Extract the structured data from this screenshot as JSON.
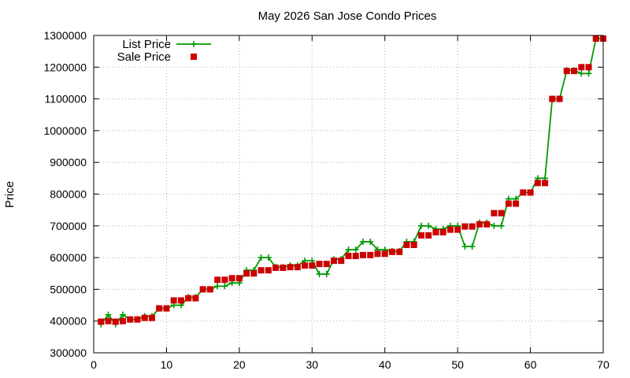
{
  "chart_data": {
    "type": "line",
    "title": "May 2026 San Jose Condo Prices",
    "xlabel": "",
    "ylabel": "Price",
    "xlim": [
      0,
      70
    ],
    "ylim": [
      300000,
      1300000
    ],
    "xticks": [
      0,
      10,
      20,
      30,
      40,
      50,
      60,
      70
    ],
    "yticks": [
      300000,
      400000,
      500000,
      600000,
      700000,
      800000,
      900000,
      1000000,
      1100000,
      1200000,
      1300000
    ],
    "grid": true,
    "legend_position": "top-left",
    "series": [
      {
        "name": "List Price",
        "style": "line-with-plus-markers",
        "color": "#009900",
        "x": [
          1,
          2,
          3,
          4,
          5,
          6,
          7,
          8,
          9,
          10,
          11,
          12,
          13,
          14,
          15,
          16,
          17,
          18,
          19,
          20,
          21,
          22,
          23,
          24,
          25,
          26,
          27,
          28,
          29,
          30,
          31,
          32,
          33,
          34,
          35,
          36,
          37,
          38,
          39,
          40,
          41,
          42,
          43,
          44,
          45,
          46,
          47,
          48,
          49,
          50,
          51,
          52,
          53,
          54,
          55,
          56,
          57,
          58,
          59,
          60,
          61,
          62,
          63,
          64,
          65,
          66,
          67,
          68,
          69,
          70
        ],
        "values": [
          390000,
          420000,
          390000,
          420000,
          405000,
          405000,
          415000,
          415000,
          440000,
          440000,
          450000,
          450000,
          475000,
          475000,
          500000,
          500000,
          510000,
          510000,
          520000,
          520000,
          560000,
          560000,
          600000,
          600000,
          570000,
          570000,
          575000,
          575000,
          590000,
          590000,
          548000,
          548000,
          595000,
          595000,
          625000,
          625000,
          650000,
          650000,
          625000,
          625000,
          620000,
          620000,
          650000,
          650000,
          700000,
          700000,
          690000,
          690000,
          700000,
          700000,
          635000,
          635000,
          710000,
          710000,
          700000,
          700000,
          785000,
          785000,
          805000,
          805000,
          850000,
          850000,
          1100000,
          1100000,
          1190000,
          1190000,
          1180000,
          1180000,
          1290000,
          1290000
        ]
      },
      {
        "name": "Sale Price",
        "style": "square-markers",
        "color": "#cc0000",
        "x": [
          1,
          2,
          3,
          4,
          5,
          6,
          7,
          8,
          9,
          10,
          11,
          12,
          13,
          14,
          15,
          16,
          17,
          18,
          19,
          20,
          21,
          22,
          23,
          24,
          25,
          26,
          27,
          28,
          29,
          30,
          31,
          32,
          33,
          34,
          35,
          36,
          37,
          38,
          39,
          40,
          41,
          42,
          43,
          44,
          45,
          46,
          47,
          48,
          49,
          50,
          51,
          52,
          53,
          54,
          55,
          56,
          57,
          58,
          59,
          60,
          61,
          62,
          63,
          64,
          65,
          66,
          67,
          68,
          69,
          70
        ],
        "values": [
          398000,
          400000,
          398000,
          400000,
          405000,
          405000,
          410000,
          410000,
          440000,
          440000,
          465000,
          465000,
          472000,
          472000,
          500000,
          500000,
          530000,
          530000,
          535000,
          535000,
          550000,
          550000,
          560000,
          560000,
          568000,
          568000,
          570000,
          570000,
          575000,
          575000,
          580000,
          580000,
          590000,
          590000,
          605000,
          605000,
          608000,
          608000,
          612000,
          612000,
          618000,
          618000,
          640000,
          640000,
          670000,
          670000,
          680000,
          680000,
          688000,
          688000,
          698000,
          698000,
          705000,
          705000,
          740000,
          740000,
          770000,
          770000,
          805000,
          805000,
          835000,
          835000,
          1100000,
          1100000,
          1188000,
          1188000,
          1200000,
          1200000,
          1290000,
          1290000
        ]
      }
    ]
  }
}
